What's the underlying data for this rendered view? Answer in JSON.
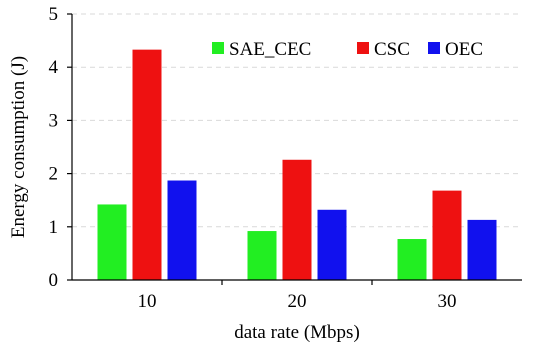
{
  "chart_data": {
    "type": "bar",
    "xlabel": "data rate (Mbps)",
    "ylabel": "Energy consumption (J)",
    "categories": [
      "10",
      "20",
      "30"
    ],
    "ylim": [
      0,
      5
    ],
    "yticks": [
      "0",
      "1",
      "2",
      "3",
      "4",
      "5"
    ],
    "grid": "horizontal-dashed",
    "legend_position": "top-right",
    "series": [
      {
        "name": "SAE_CEC",
        "color": "#22ee22",
        "values": [
          1.42,
          0.92,
          0.77
        ]
      },
      {
        "name": "CSC",
        "color": "#ee1111",
        "values": [
          4.33,
          2.26,
          1.68
        ]
      },
      {
        "name": "OEC",
        "color": "#1111ee",
        "values": [
          1.87,
          1.32,
          1.13
        ]
      }
    ]
  }
}
